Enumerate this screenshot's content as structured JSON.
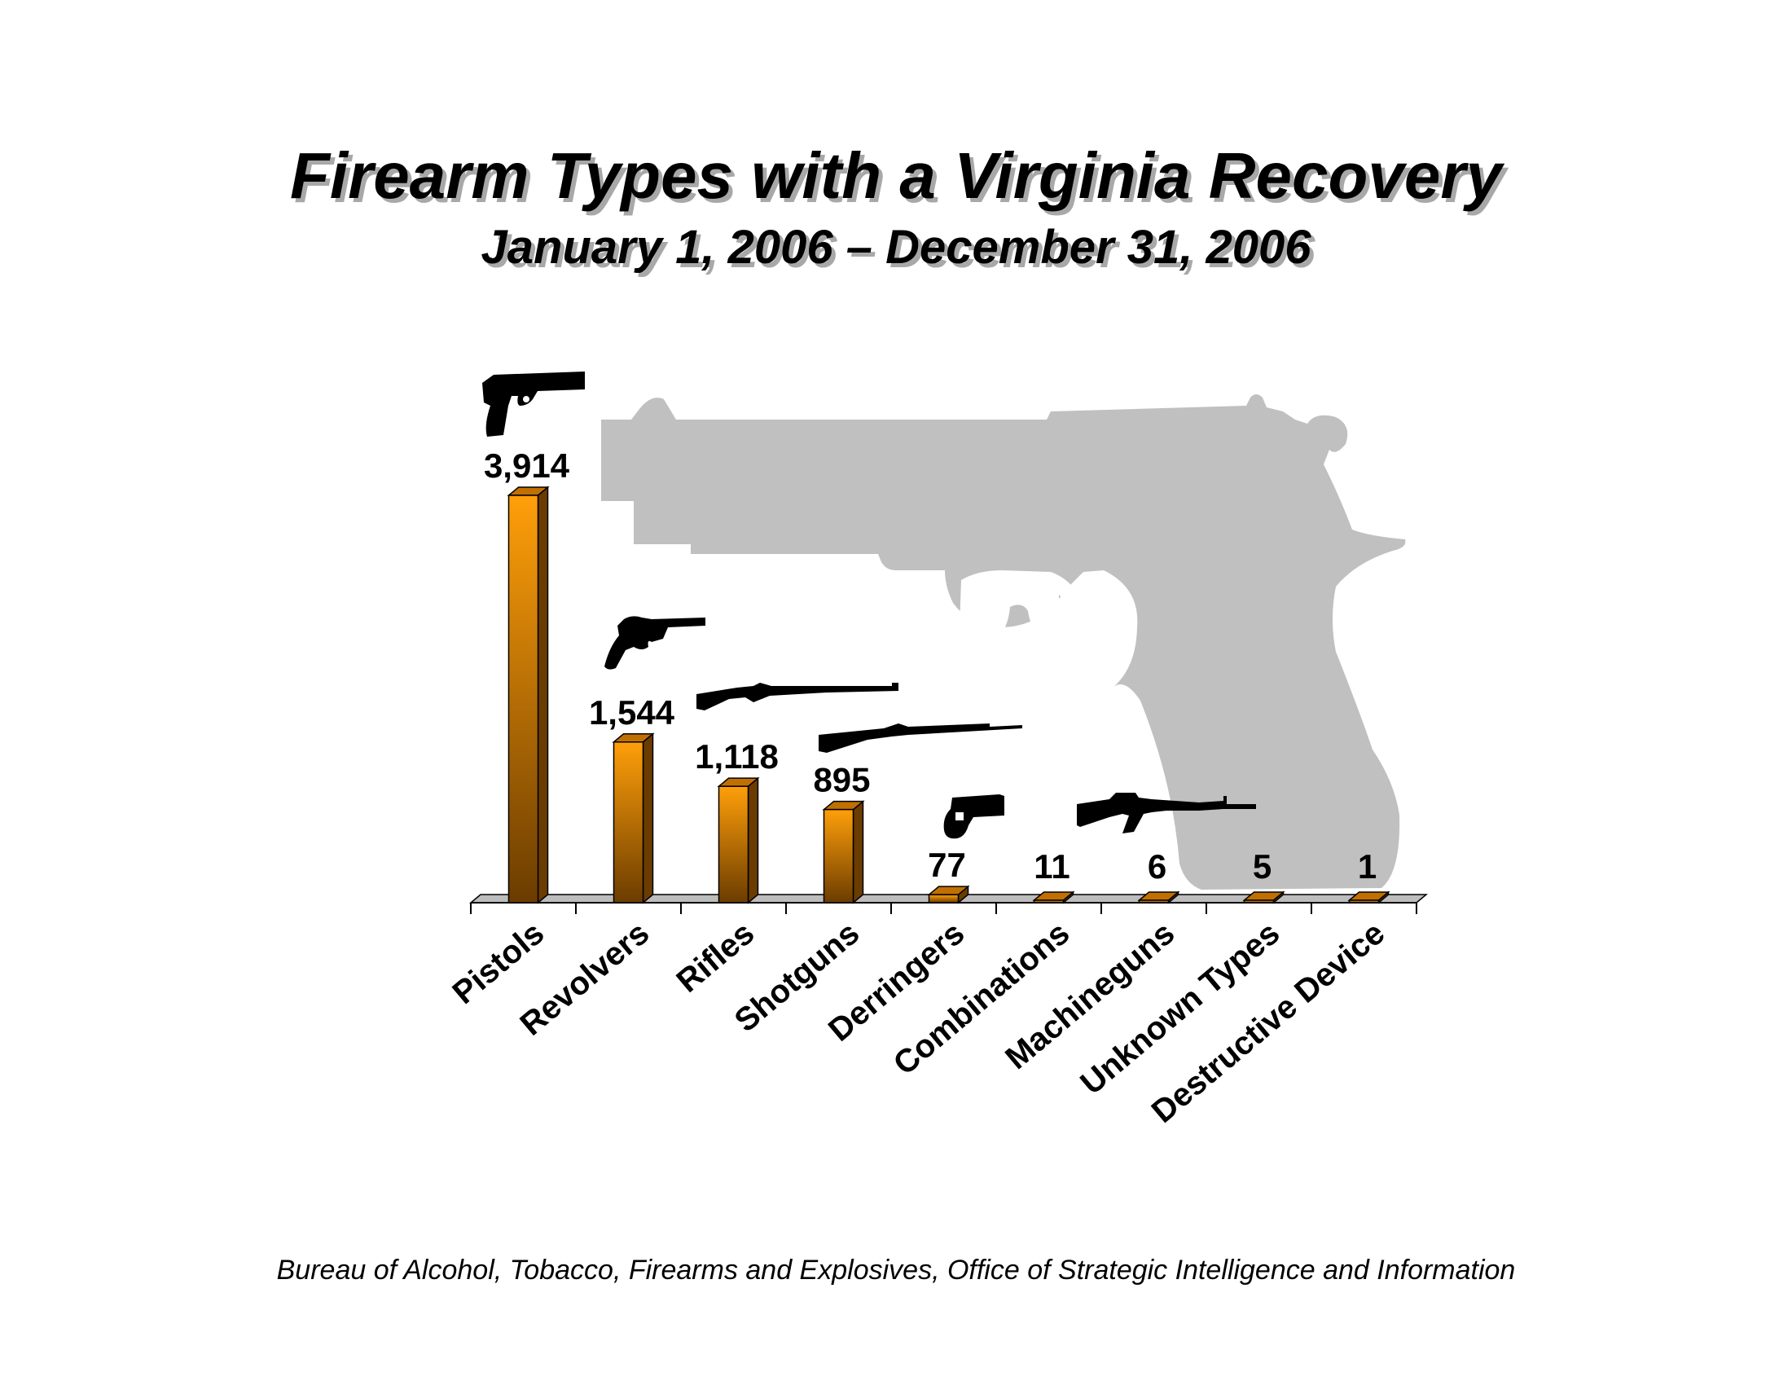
{
  "chart_data": {
    "type": "bar",
    "title": "Firearm Types with a Virginia Recovery",
    "subtitle": "January 1, 2006 – December 31, 2006",
    "categories": [
      "Pistols",
      "Revolvers",
      "Rifles",
      "Shotguns",
      "Derringers",
      "Combinations",
      "Machineguns",
      "Unknown Types",
      "Destructive Device"
    ],
    "values": [
      3914,
      1544,
      1118,
      895,
      77,
      11,
      6,
      5,
      1
    ],
    "value_labels": [
      "3,914",
      "1,544",
      "1,118",
      "895",
      "77",
      "11",
      "6",
      "5",
      "1"
    ],
    "xlabel": "",
    "ylabel": "",
    "ylim": [
      0,
      3914
    ],
    "grid": false,
    "legend": "none",
    "bar_color": "#f0960a",
    "bar_shade": "#6b3c00"
  },
  "source": "Bureau of Alcohol, Tobacco, Firearms and Explosives, Office of Strategic Intelligence and Information",
  "icons": [
    "pistol-icon",
    "revolver-icon",
    "rifle-icon",
    "shotgun-icon",
    "derringer-icon",
    "machinegun-icon"
  ],
  "watermark": "pistol-silhouette",
  "watermark_color": "#c0c0c0"
}
